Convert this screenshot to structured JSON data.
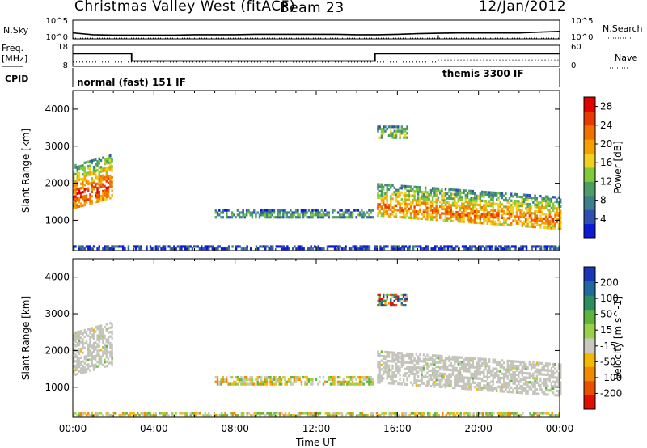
{
  "header": {
    "station": "Christmas Valley West (fitACF)",
    "beam": "Beam 23",
    "date": "12/Jan/2012"
  },
  "colors": {
    "power_scale": [
      "#0a1bd6",
      "#2f4fb0",
      "#3d7f8a",
      "#4e9e64",
      "#7fc93a",
      "#f0d020",
      "#f5a000",
      "#f07000",
      "#e83a00",
      "#e00000"
    ],
    "velocity_scale": [
      "#1a36b8",
      "#1f6a9a",
      "#2d8d5e",
      "#5db53c",
      "#9ad14a",
      "#c8c8c0",
      "#f5b800",
      "#f08a00",
      "#e85000",
      "#e01000"
    ],
    "ground_scatter": "#c4c4bc"
  },
  "chart_data": [
    {
      "type": "line",
      "name_left": "N.Sky",
      "name_right": "N.Search",
      "left_ticks": [
        "10^5",
        "10^0"
      ],
      "right_ticks": [
        "10^5",
        "10^0"
      ],
      "x_range": [
        "00:00",
        "24:00"
      ],
      "noise_sky_log10": [
        1.6,
        1.1,
        1.0,
        1.0,
        1.0,
        1.0,
        1.1,
        1.1,
        1.1,
        1.2,
        1.2,
        1.2,
        1.2,
        1.2,
        1.1,
        1.1,
        1.2,
        1.4,
        1.5,
        1.6,
        1.6,
        1.6,
        1.6,
        1.8,
        2.0
      ],
      "noise_search_log10": [
        0.2,
        0.2,
        0.2,
        0.2,
        0.2,
        0.2,
        0.2,
        0.2,
        0.2,
        0.2,
        0.2,
        0.2,
        0.2,
        0.2,
        0.2,
        0.2,
        0.2,
        0.2,
        0.2,
        0.2,
        0.2,
        0.2,
        0.2,
        0.2,
        0.2
      ],
      "spike_hour": 18.0
    },
    {
      "type": "line",
      "name_left": "Freq.",
      "unit_left": "[MHz]",
      "name_right": "Nave",
      "left_ticks": [
        "18",
        "8"
      ],
      "right_ticks": [
        "60",
        "0"
      ],
      "frequency_steps": [
        {
          "from": 0.0,
          "to": 2.9,
          "value": 14
        },
        {
          "from": 2.9,
          "to": 14.9,
          "value": 10.5
        },
        {
          "from": 14.9,
          "to": 18.0,
          "value": 14
        },
        {
          "from": 18.0,
          "to": 24.0,
          "value": 14
        }
      ],
      "nave": [
        {
          "from": 0.0,
          "to": 18.0,
          "value": 12
        },
        {
          "from": 18.0,
          "to": 24.0,
          "value": 18
        }
      ]
    },
    {
      "type": "table",
      "name": "CPID",
      "modes": [
        {
          "start_hour": 0.0,
          "label": "normal (fast) 151 IF"
        },
        {
          "start_hour": 18.0,
          "label": "themis 3300 IF"
        }
      ]
    },
    {
      "type": "heatmap",
      "name": "power",
      "ylabel": "Slant Range [km]",
      "yticks": [
        1000,
        2000,
        3000,
        4000
      ],
      "ylim": [
        180,
        4500
      ],
      "xlim": [
        0,
        24
      ],
      "colorbar_label": "Power [dB]",
      "colorbar_ticks": [
        4,
        8,
        12,
        16,
        20,
        24,
        28
      ],
      "colorbar_range": [
        0,
        30
      ],
      "regions": [
        {
          "h0": 0.0,
          "h1": 1.9,
          "r_lo": 1300,
          "r_hi": 2500,
          "slope": 150,
          "level": 0.85
        },
        {
          "h0": 7.0,
          "h1": 14.8,
          "r_lo": 1050,
          "r_hi": 1300,
          "slope": 0,
          "level": 0.35
        },
        {
          "h0": 15.0,
          "h1": 24.0,
          "r_lo": 1100,
          "r_hi": 2000,
          "slope": -40,
          "level": 0.75
        },
        {
          "h0": 15.0,
          "h1": 16.5,
          "r_lo": 3200,
          "r_hi": 3550,
          "slope": 0,
          "level": 0.5
        },
        {
          "h0": 0.0,
          "h1": 24.0,
          "r_lo": 200,
          "r_hi": 320,
          "slope": 0,
          "level": 0.15
        }
      ]
    },
    {
      "type": "heatmap",
      "name": "velocity",
      "ylabel": "Slant Range [km]",
      "yticks": [
        1000,
        2000,
        3000,
        4000
      ],
      "ylim": [
        180,
        4500
      ],
      "xlim": [
        0,
        24
      ],
      "colorbar_label": "Velocity [m s^-1]",
      "colorbar_ticks": [
        200,
        100,
        50,
        15,
        -15,
        -50,
        -100,
        -200
      ],
      "xticks": [
        "00:00",
        "04:00",
        "08:00",
        "12:00",
        "16:00",
        "20:00",
        "00:00"
      ],
      "xlabel": "Time UT",
      "regions": [
        {
          "h0": 0.0,
          "h1": 1.9,
          "r_lo": 1300,
          "r_hi": 2500,
          "slope": 150,
          "kind": "ground"
        },
        {
          "h0": 7.0,
          "h1": 14.8,
          "r_lo": 1050,
          "r_hi": 1300,
          "slope": 0,
          "kind": "negative"
        },
        {
          "h0": 15.0,
          "h1": 24.0,
          "r_lo": 1100,
          "r_hi": 2000,
          "slope": -40,
          "kind": "ground"
        },
        {
          "h0": 15.0,
          "h1": 16.5,
          "r_lo": 3200,
          "r_hi": 3550,
          "slope": 0,
          "kind": "mixed"
        },
        {
          "h0": 0.0,
          "h1": 24.0,
          "r_lo": 200,
          "r_hi": 320,
          "slope": 0,
          "kind": "negative"
        }
      ]
    }
  ]
}
